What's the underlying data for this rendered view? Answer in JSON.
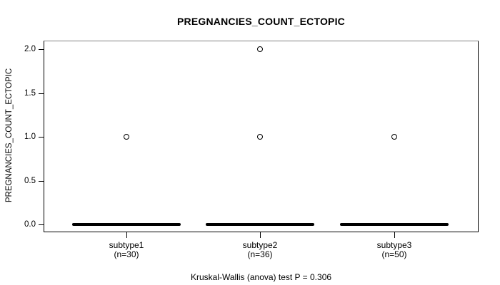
{
  "chart_data": {
    "type": "boxplot",
    "title": "PREGNANCIES_COUNT_ECTOPIC",
    "ylabel": "PREGNANCIES_COUNT_ECTOPIC",
    "xlabel": "",
    "annotation": "Kruskal-Wallis (anova) test P = 0.306",
    "ylim": [
      0,
      2
    ],
    "yticks": [
      0.0,
      0.5,
      1.0,
      1.5,
      2.0
    ],
    "ytick_labels": [
      "0.0",
      "0.5",
      "1.0",
      "1.5",
      "2.0"
    ],
    "grid": false,
    "legend": "none",
    "colors": {
      "foreground": "#000000",
      "background": "#ffffff",
      "frame_top": "#808080"
    },
    "categories": [
      "subtype1",
      "subtype2",
      "subtype3"
    ],
    "groups": [
      {
        "label": "subtype1",
        "sublabel": "(n=30)",
        "n": 30,
        "median": 0,
        "q1": 0,
        "q3": 0,
        "whisker_low": 0,
        "whisker_high": 0,
        "outliers": [
          1.0
        ]
      },
      {
        "label": "subtype2",
        "sublabel": "(n=36)",
        "n": 36,
        "median": 0,
        "q1": 0,
        "q3": 0,
        "whisker_low": 0,
        "whisker_high": 0,
        "outliers": [
          1.0,
          2.0
        ]
      },
      {
        "label": "subtype3",
        "sublabel": "(n=50)",
        "n": 50,
        "median": 0,
        "q1": 0,
        "q3": 0,
        "whisker_low": 0,
        "whisker_high": 0,
        "outliers": [
          1.0
        ]
      }
    ],
    "test": {
      "name": "Kruskal-Wallis (anova)",
      "p_value": 0.306
    }
  }
}
